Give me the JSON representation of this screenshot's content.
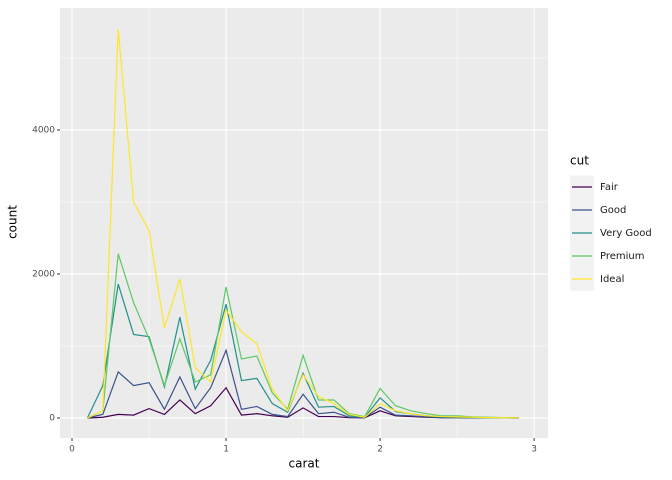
{
  "chart_data": {
    "type": "line",
    "x_label": "carat",
    "y_label": "count",
    "legend_title": "cut",
    "legend_position": "right",
    "x": [
      0.1,
      0.2,
      0.3,
      0.4,
      0.5,
      0.6,
      0.7,
      0.8,
      0.9,
      1.0,
      1.1,
      1.2,
      1.3,
      1.4,
      1.5,
      1.6,
      1.7,
      1.8,
      1.9,
      2.0,
      2.1,
      2.2,
      2.3,
      2.4,
      2.5,
      2.6,
      2.7,
      2.8,
      2.9
    ],
    "series": [
      {
        "name": "Fair",
        "color": "#440154",
        "values": [
          0,
          10,
          50,
          40,
          130,
          50,
          250,
          60,
          170,
          420,
          40,
          60,
          30,
          10,
          140,
          20,
          20,
          5,
          3,
          100,
          30,
          20,
          10,
          5,
          5,
          3,
          2,
          1,
          0
        ]
      },
      {
        "name": "Good",
        "color": "#3b528b",
        "values": [
          0,
          50,
          640,
          450,
          490,
          120,
          570,
          130,
          420,
          940,
          120,
          160,
          50,
          20,
          330,
          60,
          80,
          10,
          5,
          150,
          40,
          30,
          15,
          5,
          5,
          2,
          1,
          1,
          0
        ]
      },
      {
        "name": "Very Good",
        "color": "#21908c",
        "values": [
          0,
          450,
          1860,
          1160,
          1130,
          430,
          1400,
          400,
          800,
          1580,
          520,
          550,
          200,
          80,
          620,
          150,
          160,
          30,
          10,
          280,
          90,
          60,
          30,
          15,
          10,
          5,
          3,
          2,
          1
        ]
      },
      {
        "name": "Premium",
        "color": "#5dc863",
        "values": [
          0,
          100,
          2280,
          1600,
          1100,
          450,
          1100,
          500,
          600,
          1820,
          820,
          860,
          350,
          120,
          870,
          250,
          250,
          60,
          20,
          410,
          170,
          100,
          60,
          30,
          30,
          15,
          10,
          5,
          3
        ]
      },
      {
        "name": "Ideal",
        "color": "#fde725",
        "values": [
          0,
          100,
          5400,
          3000,
          2600,
          1250,
          1930,
          700,
          500,
          1500,
          1200,
          1030,
          400,
          100,
          600,
          300,
          200,
          50,
          10,
          200,
          100,
          60,
          30,
          20,
          15,
          10,
          5,
          3,
          2
        ]
      }
    ],
    "xlim": [
      -0.078,
      3.09
    ],
    "ylim": [
      -278,
      5694
    ],
    "xticks": [
      0,
      1,
      2,
      3
    ],
    "yticks": [
      0,
      2000,
      4000
    ],
    "x_minor_breaks": [
      0.5,
      1.5,
      2.5
    ],
    "y_minor_breaks": [
      1000,
      3000,
      5000
    ],
    "grid": true
  }
}
